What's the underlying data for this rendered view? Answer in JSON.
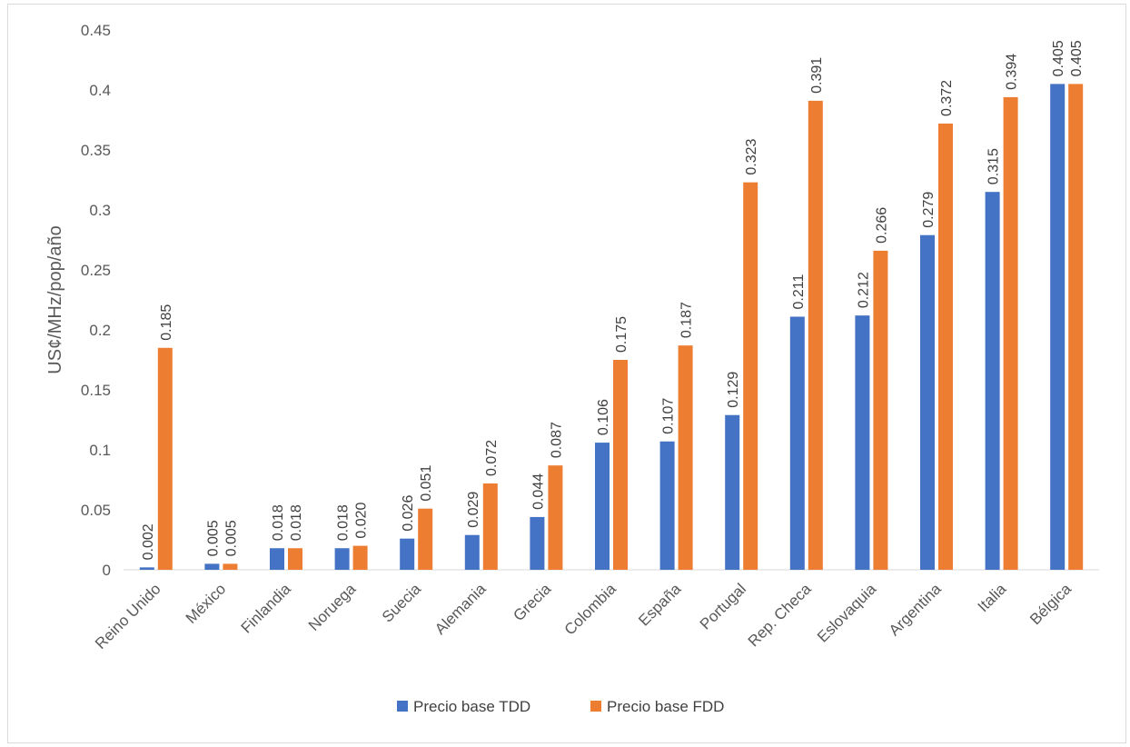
{
  "chart_data": {
    "type": "bar",
    "title": "",
    "xlabel": "",
    "ylabel": "US¢/MHz/pop/año",
    "ylim": [
      0,
      0.45
    ],
    "yticks": [
      0,
      0.05,
      0.1,
      0.15,
      0.2,
      0.25,
      0.3,
      0.35,
      0.4,
      0.45
    ],
    "ytick_labels": [
      "0",
      "0.05",
      "0.1",
      "0.15",
      "0.2",
      "0.25",
      "0.3",
      "0.35",
      "0.4",
      "0.45"
    ],
    "grid": false,
    "legend_position": "bottom",
    "categories": [
      "Reino Unido",
      "México",
      "Finlandia",
      "Noruega",
      "Suecia",
      "Alemania",
      "Grecia",
      "Colombia",
      "España",
      "Portugal",
      "Rep. Checa",
      "Eslovaquia",
      "Argentina",
      "Italia",
      "Bélgica"
    ],
    "series": [
      {
        "name": "Precio base TDD",
        "color": "#4472c4",
        "values": [
          0.002,
          0.005,
          0.018,
          0.018,
          0.026,
          0.029,
          0.044,
          0.106,
          0.107,
          0.129,
          0.211,
          0.212,
          0.279,
          0.315,
          0.405
        ],
        "labels": [
          "0.002",
          "0.005",
          "0.018",
          "0.018",
          "0.026",
          "0.029",
          "0.044",
          "0.106",
          "0.107",
          "0.129",
          "0.211",
          "0.212",
          "0.279",
          "0.315",
          "0.405"
        ]
      },
      {
        "name": "Precio base FDD",
        "color": "#ed7d31",
        "values": [
          0.185,
          0.005,
          0.018,
          0.02,
          0.051,
          0.072,
          0.087,
          0.175,
          0.187,
          0.323,
          0.391,
          0.266,
          0.372,
          0.394,
          0.405
        ],
        "labels": [
          "0.185",
          "0.005",
          "0.018",
          "0.020",
          "0.051",
          "0.072",
          "0.087",
          "0.175",
          "0.187",
          "0.323",
          "0.391",
          "0.266",
          "0.372",
          "0.394",
          "0.405"
        ]
      }
    ]
  }
}
